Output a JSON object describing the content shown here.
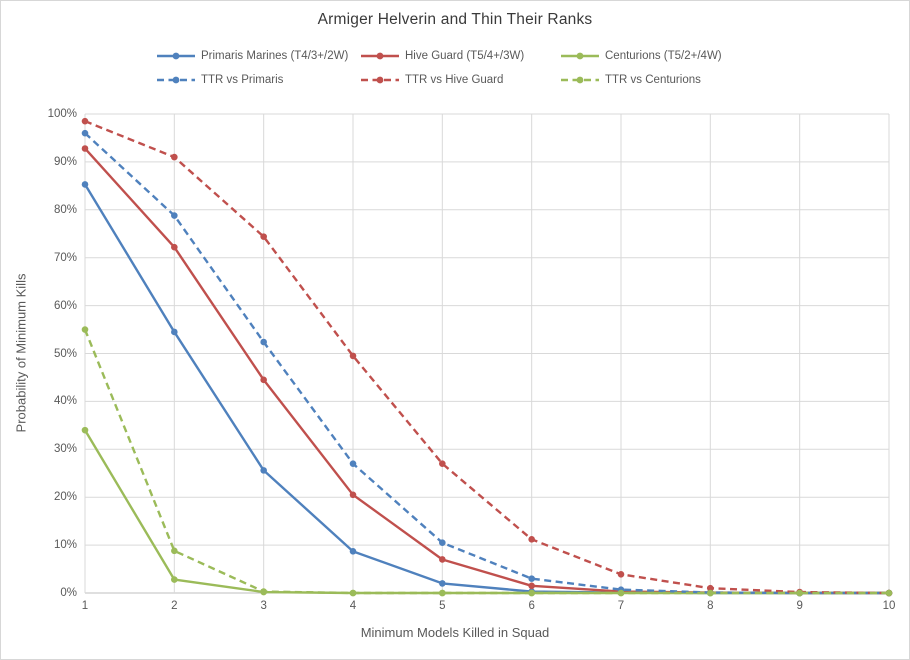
{
  "chart_data": {
    "type": "line",
    "title": "Armiger Helverin and Thin Their Ranks",
    "xlabel": "Minimum Models Killed in Squad",
    "ylabel": "Probability of Minimum Kills",
    "x": [
      1,
      2,
      3,
      4,
      5,
      6,
      7,
      8,
      9,
      10
    ],
    "ylim": [
      0,
      100
    ],
    "y_ticks": [
      "0%",
      "10%",
      "20%",
      "30%",
      "40%",
      "50%",
      "60%",
      "70%",
      "80%",
      "90%",
      "100%"
    ],
    "grid": "both",
    "legend_position": "top",
    "colors": {
      "blue": "#4F81BD",
      "red": "#C0504D",
      "green": "#9BBB59",
      "gridline": "#D9D9D9",
      "axis_line": "#BFBFBF",
      "text_gray": "#595959"
    },
    "series": [
      {
        "name": "Primaris Marines (T4/3+/2W)",
        "color": "#4F81BD",
        "style": "solid",
        "values": [
          85.3,
          54.5,
          25.6,
          8.7,
          2.0,
          0.3,
          0.1,
          0,
          0,
          0
        ]
      },
      {
        "name": "Hive Guard (T5/4+/3W)",
        "color": "#C0504D",
        "style": "solid",
        "values": [
          92.8,
          72.2,
          44.5,
          20.5,
          7.0,
          1.5,
          0.3,
          0.1,
          0,
          0
        ]
      },
      {
        "name": "Centurions (T5/2+/4W)",
        "color": "#9BBB59",
        "style": "solid",
        "values": [
          34.0,
          2.8,
          0.2,
          0,
          0,
          0,
          0,
          0,
          0,
          0
        ]
      },
      {
        "name": "TTR vs Primaris",
        "color": "#4F81BD",
        "style": "dashed",
        "values": [
          96.0,
          78.8,
          52.4,
          27.0,
          10.5,
          3.0,
          0.7,
          0.1,
          0,
          0
        ]
      },
      {
        "name": "TTR vs Hive Guard",
        "color": "#C0504D",
        "style": "dashed",
        "values": [
          98.5,
          91.0,
          74.4,
          49.5,
          27.0,
          11.2,
          3.9,
          1.0,
          0.2,
          0
        ]
      },
      {
        "name": "TTR vs Centurions",
        "color": "#9BBB59",
        "style": "dashed",
        "values": [
          55.0,
          8.8,
          0.3,
          0,
          0,
          0,
          0,
          0,
          0,
          0
        ]
      }
    ]
  }
}
